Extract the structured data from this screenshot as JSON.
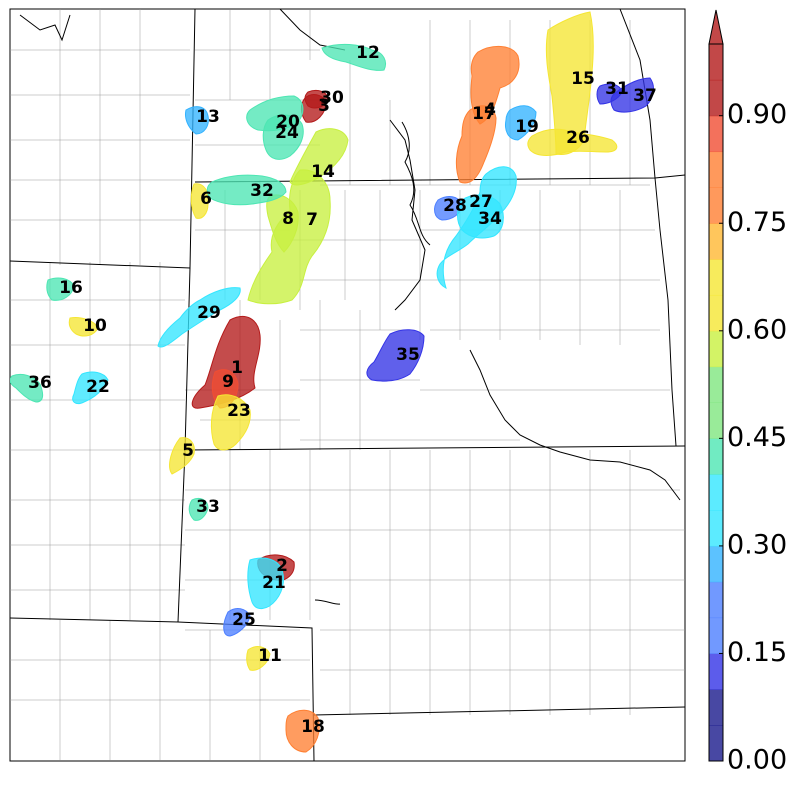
{
  "map": {
    "type": "probability-map",
    "regions": [
      {
        "id": "1",
        "value": 0.97
      },
      {
        "id": "2",
        "value": 0.97
      },
      {
        "id": "3",
        "value": 0.97
      },
      {
        "id": "4",
        "value": 0.78
      },
      {
        "id": "5",
        "value": 0.64
      },
      {
        "id": "6",
        "value": 0.64
      },
      {
        "id": "7",
        "value": 0.6
      },
      {
        "id": "8",
        "value": 0.6
      },
      {
        "id": "9",
        "value": 0.85
      },
      {
        "id": "10",
        "value": 0.62
      },
      {
        "id": "11",
        "value": 0.66
      },
      {
        "id": "12",
        "value": 0.46
      },
      {
        "id": "13",
        "value": 0.3
      },
      {
        "id": "14",
        "value": 0.58
      },
      {
        "id": "15",
        "value": 0.68
      },
      {
        "id": "16",
        "value": 0.46
      },
      {
        "id": "17",
        "value": 0.78
      },
      {
        "id": "18",
        "value": 0.8
      },
      {
        "id": "19",
        "value": 0.25
      },
      {
        "id": "20",
        "value": 0.46
      },
      {
        "id": "21",
        "value": 0.33
      },
      {
        "id": "22",
        "value": 0.36
      },
      {
        "id": "23",
        "value": 0.62
      },
      {
        "id": "24",
        "value": 0.46
      },
      {
        "id": "25",
        "value": 0.22
      },
      {
        "id": "26",
        "value": 0.68
      },
      {
        "id": "27",
        "value": 0.33
      },
      {
        "id": "28",
        "value": 0.22
      },
      {
        "id": "29",
        "value": 0.33
      },
      {
        "id": "30",
        "value": 0.97
      },
      {
        "id": "31",
        "value": 0.1
      },
      {
        "id": "32",
        "value": 0.42
      },
      {
        "id": "33",
        "value": 0.4
      },
      {
        "id": "34",
        "value": 0.33
      },
      {
        "id": "35",
        "value": 0.1
      },
      {
        "id": "36",
        "value": 0.42
      },
      {
        "id": "37",
        "value": 0.1
      }
    ]
  },
  "colorbar": {
    "min": 0.0,
    "max": 1.0,
    "extend": "max",
    "tick_labels": [
      "0.00",
      "0.15",
      "0.30",
      "0.45",
      "0.60",
      "0.75",
      "0.90"
    ],
    "stops": [
      "#1a1a8c",
      "#3333e6",
      "#4d7fff",
      "#33b3ff",
      "#33e6ff",
      "#4de6b3",
      "#80e680",
      "#c8f040",
      "#f5e633",
      "#ffb833",
      "#ff8033",
      "#f04d33",
      "#b31a1a"
    ]
  }
}
